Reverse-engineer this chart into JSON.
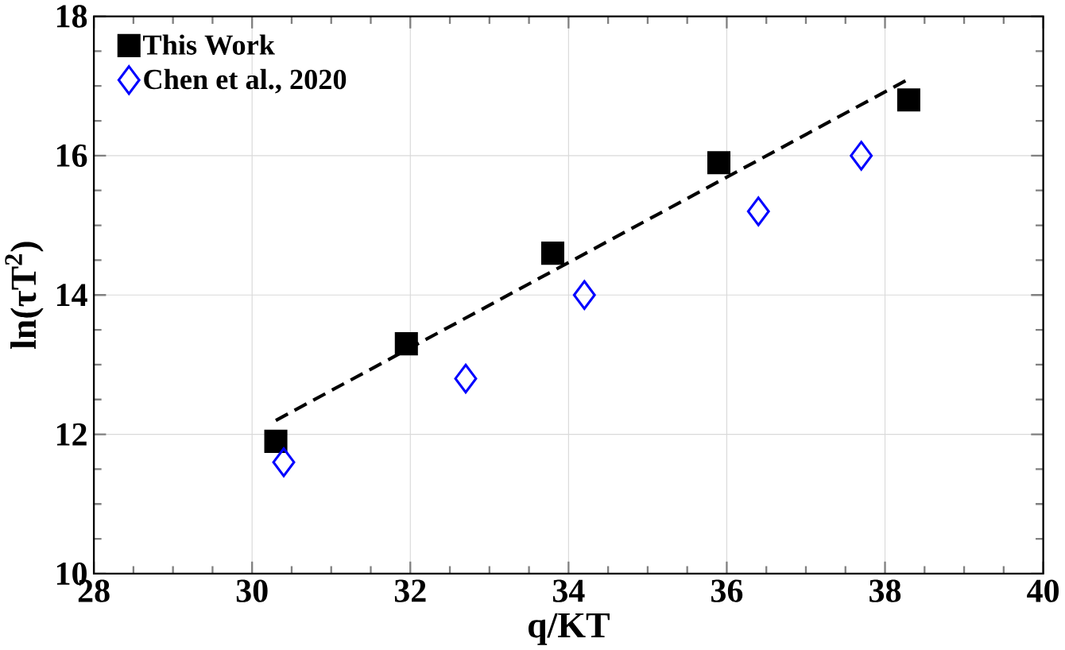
{
  "chart_data": {
    "type": "scatter",
    "xlabel": "q/KT",
    "ylabel": "ln(τT$^{2}$)",
    "xlim": [
      28,
      40
    ],
    "xticks": [
      28,
      30,
      32,
      34,
      36,
      38,
      40
    ],
    "ylim": [
      10,
      18
    ],
    "yticks": [
      10,
      12,
      14,
      16,
      18
    ],
    "grid": true,
    "legend": "top left",
    "series": [
      {
        "name": "This Work",
        "color": "#000000",
        "marker": "square",
        "x": [
          30.3,
          31.95,
          33.8,
          35.9,
          38.3
        ],
        "values": [
          11.9,
          13.3,
          14.6,
          15.9,
          16.8
        ]
      },
      {
        "name": "Chen et al., 2020",
        "color": "#0000ff",
        "marker": "diamond",
        "x": [
          30.4,
          32.7,
          34.2,
          36.4,
          37.7
        ],
        "values": [
          11.6,
          12.8,
          14.0,
          15.2,
          16.0
        ]
      },
      {
        "type": "line",
        "color": "#000000",
        "line_style": "dashed",
        "marker": "none",
        "x": [
          30.3,
          38.3
        ],
        "values": [
          12.2,
          17.1
        ]
      }
    ]
  }
}
